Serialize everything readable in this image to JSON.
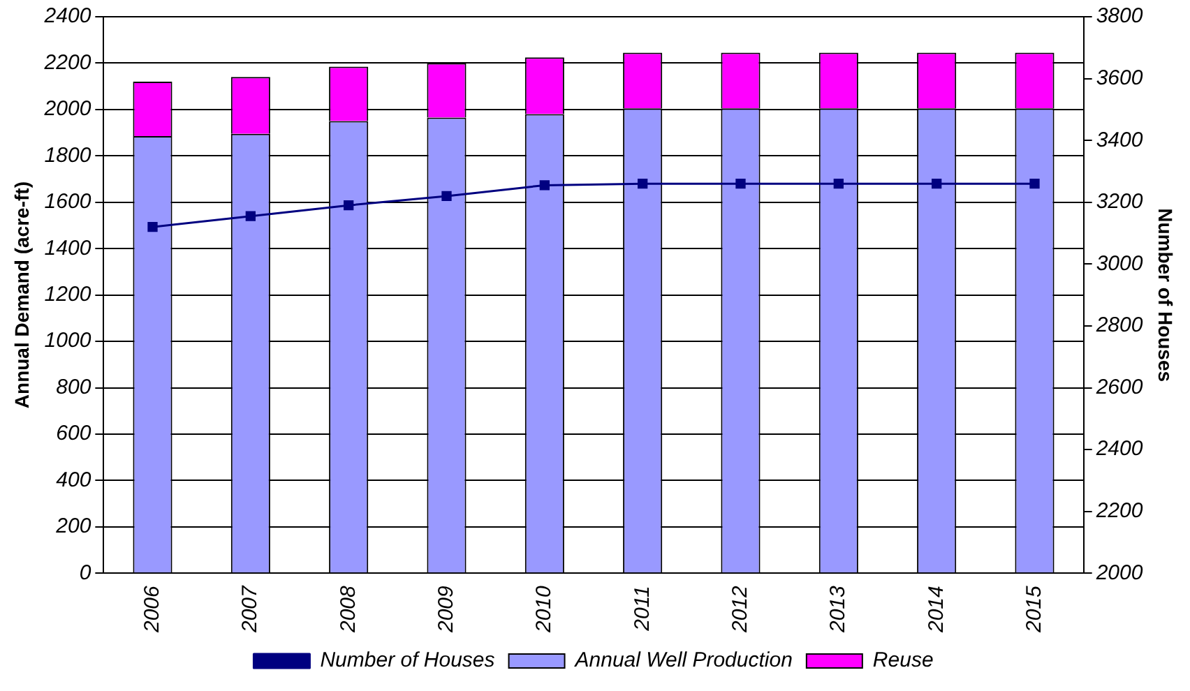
{
  "chart_data": {
    "type": "bar",
    "stacked": true,
    "categories": [
      "2006",
      "2007",
      "2008",
      "2009",
      "2010",
      "2011",
      "2012",
      "2013",
      "2014",
      "2015"
    ],
    "series": [
      {
        "name": "Annual Well Production",
        "color": "#9999ff",
        "values": [
          1885,
          1895,
          1950,
          1965,
          1980,
          2005,
          2005,
          2005,
          2005,
          2005
        ]
      },
      {
        "name": "Reuse",
        "color": "#ff00ff",
        "values": [
          235,
          245,
          235,
          235,
          245,
          240,
          240,
          240,
          240,
          240
        ]
      },
      {
        "name": "Number of Houses",
        "type": "line",
        "axis": "y2",
        "color": "#000080",
        "values": [
          3120,
          3155,
          3190,
          3220,
          3255,
          3260,
          3260,
          3260,
          3260,
          3260
        ]
      }
    ],
    "ylabel": "Annual Demand (acre-ft)",
    "y2label": "Number of Houses",
    "ylim": [
      0,
      2400
    ],
    "yticks": [
      0,
      200,
      400,
      600,
      800,
      1000,
      1200,
      1400,
      1600,
      1800,
      2000,
      2200,
      2400
    ],
    "y2lim": [
      2000,
      3800
    ],
    "y2ticks": [
      2000,
      2200,
      2400,
      2600,
      2800,
      3000,
      3200,
      3400,
      3600,
      3800
    ],
    "grid": "y",
    "legend": "bottom",
    "marker": "square",
    "line_style": "solid"
  }
}
